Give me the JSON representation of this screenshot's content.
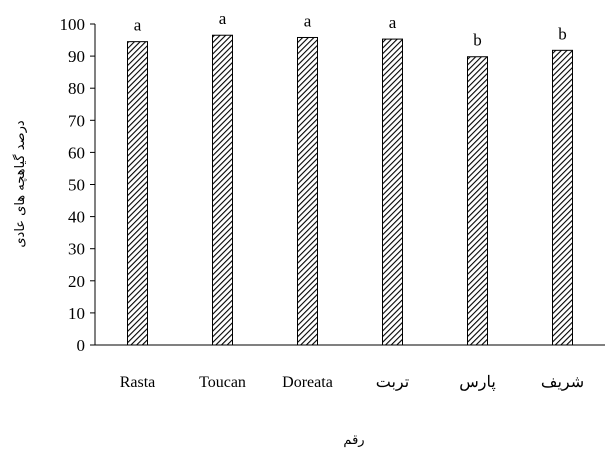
{
  "chart_data": {
    "type": "bar",
    "title": "",
    "xlabel": "رقم",
    "ylabel": "درصد گیاهچه های عادی",
    "categories": [
      "Rasta",
      "Toucan",
      "Doreata",
      "تربت",
      "پارس",
      "شریف"
    ],
    "values": [
      94.5,
      96.5,
      95.8,
      95.3,
      89.8,
      91.8
    ],
    "significance_letters": [
      "a",
      "a",
      "a",
      "a",
      "b",
      "b"
    ],
    "ylim": [
      0,
      100
    ],
    "yticks": [
      "0",
      "10",
      "20",
      "30",
      "40",
      "50",
      "60",
      "70",
      "80",
      "90",
      "100"
    ],
    "grid": false,
    "legend": "none",
    "bar_fill": "diagonal-hatch",
    "colors": {
      "bar_fill": "#ffffff",
      "hatch": "#000000",
      "axis": "#000000"
    }
  }
}
